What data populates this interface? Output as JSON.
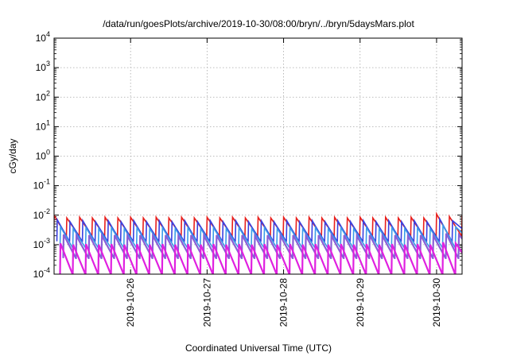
{
  "chart_data": {
    "type": "line",
    "title": "/data/run/goesPlots/archive/2019-10-30/08:00/bryn/../bryn/5daysMars.plot",
    "xlabel": "Coordinated Universal Time (UTC)",
    "ylabel": "cGy/day",
    "yscale": "log",
    "ylim": [
      0.0001,
      10000
    ],
    "y_ticks": [
      {
        "base": "10",
        "exp": "-4",
        "value": 0.0001
      },
      {
        "base": "10",
        "exp": "-3",
        "value": 0.001
      },
      {
        "base": "10",
        "exp": "-2",
        "value": 0.01
      },
      {
        "base": "10",
        "exp": "-1",
        "value": 0.1
      },
      {
        "base": "10",
        "exp": "0",
        "value": 1
      },
      {
        "base": "10",
        "exp": "1",
        "value": 10
      },
      {
        "base": "10",
        "exp": "2",
        "value": 100
      },
      {
        "base": "10",
        "exp": "3",
        "value": 1000
      },
      {
        "base": "10",
        "exp": "4",
        "value": 10000
      }
    ],
    "xlim": [
      "2019-10-25 00:00",
      "2019-10-30 08:00"
    ],
    "x_ticks": [
      "2019-10-26",
      "2019-10-27",
      "2019-10-28",
      "2019-10-29",
      "2019-10-30"
    ],
    "grid": true,
    "legend": "none",
    "series": [
      {
        "color": "#e8201c",
        "width": 1.6,
        "x": [
          "2019-10-25 00:00",
          "2019-10-25 04:00",
          "2019-10-25 08:00",
          "2019-10-25 12:00",
          "2019-10-25 16:00",
          "2019-10-25 20:00",
          "2019-10-26 00:00",
          "2019-10-26 04:00",
          "2019-10-26 08:00",
          "2019-10-26 12:00",
          "2019-10-26 16:00",
          "2019-10-26 20:00",
          "2019-10-27 00:00",
          "2019-10-27 04:00",
          "2019-10-27 08:00",
          "2019-10-27 12:00",
          "2019-10-27 16:00",
          "2019-10-27 20:00",
          "2019-10-28 00:00",
          "2019-10-28 04:00",
          "2019-10-28 08:00",
          "2019-10-28 12:00",
          "2019-10-28 16:00",
          "2019-10-28 20:00",
          "2019-10-29 00:00",
          "2019-10-29 04:00",
          "2019-10-29 08:00",
          "2019-10-29 12:00",
          "2019-10-29 16:00",
          "2019-10-29 20:00",
          "2019-10-30 00:00",
          "2019-10-30 04:00",
          "2019-10-30 08:00"
        ],
        "y": [
          0.01,
          0.008,
          0.0085,
          0.008,
          0.0085,
          0.008,
          0.0085,
          0.008,
          0.0085,
          0.008,
          0.0085,
          0.008,
          0.0085,
          0.008,
          0.0085,
          0.008,
          0.0085,
          0.008,
          0.0085,
          0.008,
          0.0085,
          0.008,
          0.0085,
          0.008,
          0.0085,
          0.008,
          0.0085,
          0.008,
          0.0085,
          0.008,
          0.011,
          0.009,
          0.0085
        ],
        "y_low": 0.002
      },
      {
        "color": "#3a3fe0",
        "width": 1.6,
        "x": [
          "2019-10-25 01:00",
          "2019-10-25 05:00",
          "2019-10-25 09:00",
          "2019-10-25 13:00",
          "2019-10-25 17:00",
          "2019-10-25 21:00",
          "2019-10-26 01:00",
          "2019-10-26 05:00",
          "2019-10-26 09:00",
          "2019-10-26 13:00",
          "2019-10-26 17:00",
          "2019-10-26 21:00",
          "2019-10-27 01:00",
          "2019-10-27 05:00",
          "2019-10-27 09:00",
          "2019-10-27 13:00",
          "2019-10-27 17:00",
          "2019-10-27 21:00",
          "2019-10-28 01:00",
          "2019-10-28 05:00",
          "2019-10-28 09:00",
          "2019-10-28 13:00",
          "2019-10-28 17:00",
          "2019-10-28 21:00",
          "2019-10-29 01:00",
          "2019-10-29 05:00",
          "2019-10-29 09:00",
          "2019-10-29 13:00",
          "2019-10-29 17:00",
          "2019-10-29 21:00",
          "2019-10-30 01:00",
          "2019-10-30 05:00"
        ],
        "y": [
          0.007,
          0.006,
          0.0065,
          0.006,
          0.0065,
          0.006,
          0.0065,
          0.006,
          0.0065,
          0.006,
          0.0065,
          0.006,
          0.0065,
          0.006,
          0.0065,
          0.006,
          0.0065,
          0.006,
          0.0065,
          0.006,
          0.0065,
          0.006,
          0.0065,
          0.006,
          0.0065,
          0.006,
          0.0065,
          0.006,
          0.0065,
          0.006,
          0.0075,
          0.0065
        ],
        "y_low": 0.0013
      },
      {
        "color": "#3a9be8",
        "width": 1.6,
        "x": [
          "2019-10-25 02:00",
          "2019-10-25 06:00",
          "2019-10-25 10:00",
          "2019-10-25 14:00",
          "2019-10-25 18:00",
          "2019-10-25 22:00",
          "2019-10-26 02:00",
          "2019-10-26 06:00",
          "2019-10-26 10:00",
          "2019-10-26 14:00",
          "2019-10-26 18:00",
          "2019-10-26 22:00",
          "2019-10-27 02:00",
          "2019-10-27 06:00",
          "2019-10-27 10:00",
          "2019-10-27 14:00",
          "2019-10-27 18:00",
          "2019-10-27 22:00",
          "2019-10-28 02:00",
          "2019-10-28 06:00",
          "2019-10-28 10:00",
          "2019-10-28 14:00",
          "2019-10-28 18:00",
          "2019-10-28 22:00",
          "2019-10-29 02:00",
          "2019-10-29 06:00",
          "2019-10-29 10:00",
          "2019-10-29 14:00",
          "2019-10-29 18:00",
          "2019-10-29 22:00",
          "2019-10-30 02:00",
          "2019-10-30 06:00"
        ],
        "y": [
          0.004,
          0.0035,
          0.0038,
          0.0035,
          0.0038,
          0.0035,
          0.0038,
          0.0035,
          0.0038,
          0.0035,
          0.0038,
          0.0035,
          0.0038,
          0.0035,
          0.0038,
          0.0035,
          0.0038,
          0.0035,
          0.0038,
          0.0035,
          0.0038,
          0.0035,
          0.0038,
          0.0035,
          0.0038,
          0.0035,
          0.0038,
          0.0035,
          0.0038,
          0.0035,
          0.0045,
          0.004
        ],
        "y_low": 0.0008
      },
      {
        "color": "#8a5fd6",
        "width": 2.2,
        "x": [
          "2019-10-25 03:00",
          "2019-10-25 07:00",
          "2019-10-25 11:00",
          "2019-10-25 15:00",
          "2019-10-25 19:00",
          "2019-10-25 23:00",
          "2019-10-26 03:00",
          "2019-10-26 07:00",
          "2019-10-26 11:00",
          "2019-10-26 15:00",
          "2019-10-26 19:00",
          "2019-10-26 23:00",
          "2019-10-27 03:00",
          "2019-10-27 07:00",
          "2019-10-27 11:00",
          "2019-10-27 15:00",
          "2019-10-27 19:00",
          "2019-10-27 23:00",
          "2019-10-28 03:00",
          "2019-10-28 07:00",
          "2019-10-28 11:00",
          "2019-10-28 15:00",
          "2019-10-28 19:00",
          "2019-10-28 23:00",
          "2019-10-29 03:00",
          "2019-10-29 07:00",
          "2019-10-29 11:00",
          "2019-10-29 15:00",
          "2019-10-29 19:00",
          "2019-10-29 23:00",
          "2019-10-30 03:00",
          "2019-10-30 07:00"
        ],
        "y": [
          0.0022,
          0.002,
          0.0021,
          0.002,
          0.0021,
          0.002,
          0.0021,
          0.002,
          0.0021,
          0.002,
          0.0021,
          0.002,
          0.0021,
          0.002,
          0.0021,
          0.002,
          0.0021,
          0.002,
          0.0021,
          0.002,
          0.0021,
          0.002,
          0.0021,
          0.002,
          0.0021,
          0.002,
          0.0021,
          0.002,
          0.0021,
          0.002,
          0.0024,
          0.0022
        ],
        "y_low": 0.00035
      },
      {
        "color": "#e020e0",
        "width": 2.2,
        "x": [
          "2019-10-25 02:00",
          "2019-10-25 06:00",
          "2019-10-25 10:00",
          "2019-10-25 14:00",
          "2019-10-25 18:00",
          "2019-10-25 22:00",
          "2019-10-26 02:00",
          "2019-10-26 06:00",
          "2019-10-26 10:00",
          "2019-10-26 14:00",
          "2019-10-26 18:00",
          "2019-10-26 22:00",
          "2019-10-27 02:00",
          "2019-10-27 06:00",
          "2019-10-27 10:00",
          "2019-10-27 14:00",
          "2019-10-27 18:00",
          "2019-10-27 22:00",
          "2019-10-28 02:00",
          "2019-10-28 06:00",
          "2019-10-28 10:00",
          "2019-10-28 14:00",
          "2019-10-28 18:00",
          "2019-10-28 22:00",
          "2019-10-29 02:00",
          "2019-10-29 06:00",
          "2019-10-29 10:00",
          "2019-10-29 14:00",
          "2019-10-29 18:00",
          "2019-10-29 22:00",
          "2019-10-30 02:00",
          "2019-10-30 06:00"
        ],
        "y": [
          0.0011,
          0.001,
          0.00105,
          0.001,
          0.00105,
          0.001,
          0.00105,
          0.001,
          0.00105,
          0.001,
          0.00105,
          0.001,
          0.00105,
          0.001,
          0.00105,
          0.001,
          0.00105,
          0.001,
          0.00105,
          0.001,
          0.00105,
          0.001,
          0.00105,
          0.001,
          0.00105,
          0.001,
          0.00105,
          0.001,
          0.00105,
          0.001,
          0.0012,
          0.0011
        ],
        "y_low": 0.0001
      }
    ]
  }
}
